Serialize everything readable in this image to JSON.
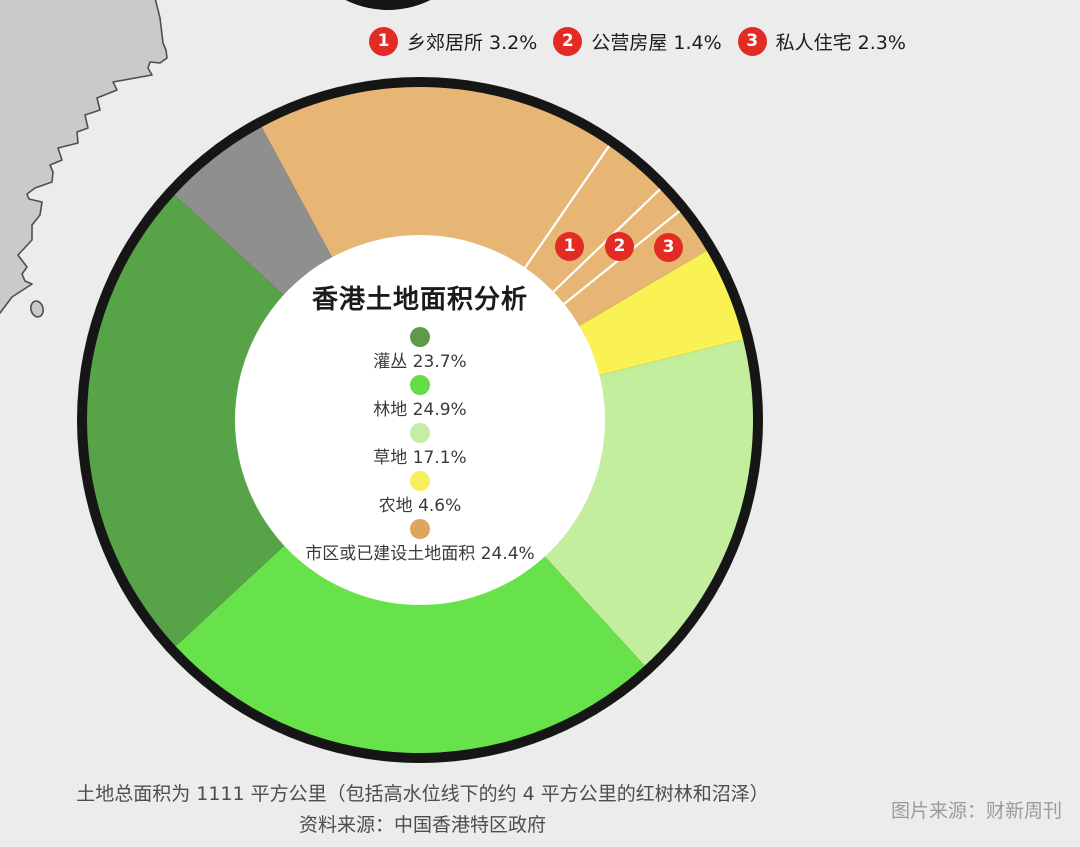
{
  "page": {
    "background": "#ececec",
    "caption_line1": "土地总面积为 1111 平方公里（包括高水位线下的约 4 平方公里的红树林和沼泽）",
    "caption_line2": "资料来源：中国香港特区政府",
    "credit": "图片来源：财新周刊"
  },
  "top_legend": {
    "badge_color": "#e32b25",
    "items": [
      {
        "num": "1",
        "text": "乡郊居所 3.2%"
      },
      {
        "num": "2",
        "text": "公营房屋 1.4%"
      },
      {
        "num": "3",
        "text": "私人住宅 2.3%"
      }
    ]
  },
  "center_panel": {
    "title": "香港土地面积分析",
    "items": [
      {
        "text": "灌丛 23.7%",
        "color": "#5d9a4a"
      },
      {
        "text": "林地 24.9%",
        "color": "#64dd47"
      },
      {
        "text": "草地 17.1%",
        "color": "#c4eda5"
      },
      {
        "text": "农地 4.6%",
        "color": "#f6ee5c"
      },
      {
        "text": "市区或已建设土地面积 24.4%",
        "color": "#dda55e"
      }
    ]
  },
  "chart_data": {
    "type": "pie",
    "variant": "donut",
    "title": "香港土地面积分析",
    "unit": "percent",
    "categories": [
      "灌丛",
      "林地",
      "草地",
      "农地",
      "市区或已建设土地面积"
    ],
    "values": [
      23.7,
      24.9,
      17.1,
      4.6,
      24.4
    ],
    "built_up_breakdown": [
      {
        "num": "1",
        "label": "乡郊居所",
        "value": 3.2
      },
      {
        "num": "2",
        "label": "公营房屋",
        "value": 1.4
      },
      {
        "num": "3",
        "label": "私人住宅",
        "value": 2.3
      }
    ],
    "unlabeled_gray_remainder_pct": 5.3,
    "total_area_note": "土地总面积为 1111 平方公里（包括高水位线下的约 4 平方公里的红树林和沼泽）",
    "source": "资料来源：中国香港特区政府",
    "render": {
      "start_angle_deg": -28.4,
      "ring_color": "#161616",
      "divider_color": "#ffffff",
      "arcs": [
        {
          "name": "市区或已建设土地面积-主体",
          "pct": 17.5,
          "color": "#e7b574",
          "divider": false
        },
        {
          "name": "乡郊居所",
          "pct": 3.2,
          "color": "#e7b574",
          "divider": true
        },
        {
          "name": "公营房屋",
          "pct": 1.4,
          "color": "#e7b574",
          "divider": true
        },
        {
          "name": "私人住宅",
          "pct": 2.3,
          "color": "#e7b574",
          "divider": true
        },
        {
          "name": "农地",
          "pct": 4.6,
          "color": "#faf255",
          "divider": false
        },
        {
          "name": "草地",
          "pct": 17.1,
          "color": "#c3ee9e",
          "divider": false
        },
        {
          "name": "林地",
          "pct": 24.9,
          "color": "#68e24b",
          "divider": false
        },
        {
          "name": "灌丛",
          "pct": 23.7,
          "color": "#57a347",
          "divider": false
        },
        {
          "name": "其他（未标注）",
          "pct": 5.3,
          "color": "#8f8f8f",
          "divider": false
        }
      ]
    }
  }
}
